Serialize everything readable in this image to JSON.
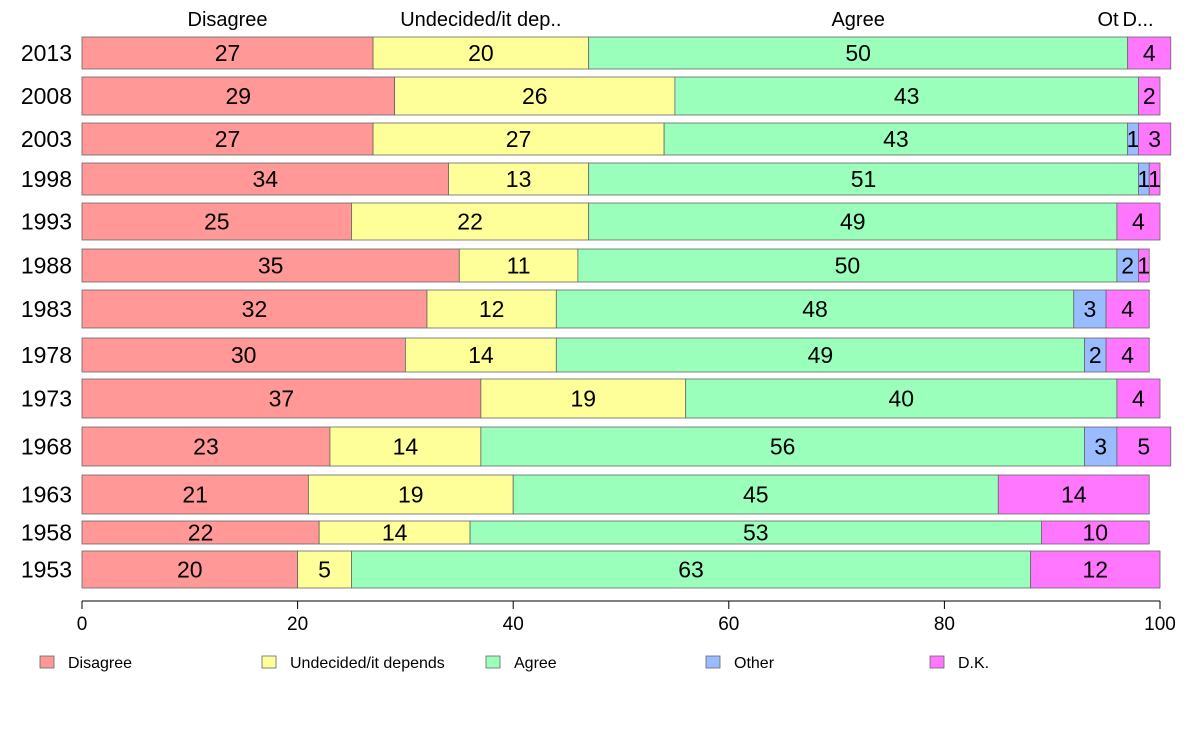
{
  "chart_data": {
    "type": "bar",
    "orientation": "horizontal",
    "stacked": true,
    "categories": [
      "2013",
      "2008",
      "2003",
      "1998",
      "1993",
      "1988",
      "1983",
      "1978",
      "1973",
      "1968",
      "1963",
      "1958",
      "1953"
    ],
    "series": [
      {
        "name": "Disagree",
        "color": "#ff9896",
        "values": [
          27,
          29,
          27,
          34,
          25,
          35,
          32,
          30,
          37,
          23,
          21,
          22,
          20
        ]
      },
      {
        "name": "Undecided/it depends",
        "color": "#ffff99",
        "values": [
          20,
          26,
          27,
          13,
          22,
          11,
          12,
          14,
          19,
          14,
          19,
          14,
          5
        ]
      },
      {
        "name": "Agree",
        "color": "#99ffbb",
        "values": [
          50,
          43,
          43,
          51,
          49,
          50,
          48,
          49,
          40,
          56,
          45,
          53,
          63
        ]
      },
      {
        "name": "Other",
        "color": "#99bbff",
        "values": [
          0,
          0,
          1,
          1,
          0,
          2,
          3,
          2,
          0,
          3,
          0,
          0,
          0
        ]
      },
      {
        "name": "D.K.",
        "color": "#ff77ff",
        "values": [
          4,
          2,
          3,
          1,
          4,
          1,
          4,
          4,
          4,
          5,
          14,
          10,
          12
        ]
      }
    ],
    "top_labels": [
      "Disagree",
      "Undecided/it dep..",
      "Agree",
      "Ot",
      "D..."
    ],
    "x_ticks": [
      "0",
      "20",
      "40",
      "60",
      "80",
      "100"
    ],
    "xlim": [
      0,
      100
    ],
    "grid": false,
    "legend_position": "bottom"
  }
}
